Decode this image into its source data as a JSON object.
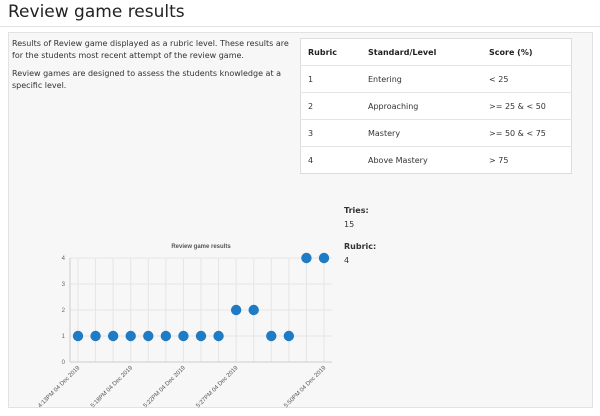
{
  "page": {
    "title": "Review game results"
  },
  "intro": {
    "paragraph1": "Results of Review game displayed as a rubric level. These results are for the students most recent attempt of the review game.",
    "paragraph2": "Review games are designed to assess the students knowledge at a specific level."
  },
  "rubric_table": {
    "headers": [
      "Rubric",
      "Standard/Level",
      "Score (%)"
    ],
    "rows": [
      {
        "rubric": "1",
        "level": "Entering",
        "score": "< 25"
      },
      {
        "rubric": "2",
        "level": "Approaching",
        "score": ">= 25 & < 50"
      },
      {
        "rubric": "3",
        "level": "Mastery",
        "score": ">= 50 & < 75"
      },
      {
        "rubric": "4",
        "level": "Above Mastery",
        "score": "> 75"
      }
    ]
  },
  "stats": {
    "tries_label": "Tries:",
    "tries_value": "15",
    "rubric_label": "Rubric:",
    "rubric_value": "4"
  },
  "colors": {
    "point": "#1f7bc4",
    "grid": "#e5e5e5"
  },
  "chart_data": {
    "type": "scatter",
    "title": "Review game results",
    "xlabel": "",
    "ylabel": "",
    "ylim": [
      0,
      4
    ],
    "yticks": [
      "0",
      "1",
      "2",
      "3",
      "4"
    ],
    "xtick_labels": [
      {
        "index": 0,
        "label": "4:13PM 04 Dec 2019"
      },
      {
        "index": 3,
        "label": "5:18PM 04 Dec 2019"
      },
      {
        "index": 6,
        "label": "5:22PM 04 Dec 2019"
      },
      {
        "index": 9,
        "label": "5:27PM 04 Dec 2019"
      },
      {
        "index": 14,
        "label": "5:50PM 04 Dec 2019"
      }
    ],
    "x": [
      0,
      1,
      2,
      3,
      4,
      5,
      6,
      7,
      8,
      9,
      10,
      11,
      12,
      13,
      14
    ],
    "y": [
      1,
      1,
      1,
      1,
      1,
      1,
      1,
      1,
      1,
      2,
      2,
      1,
      1,
      4,
      4
    ],
    "grid": true,
    "legend": "none"
  }
}
